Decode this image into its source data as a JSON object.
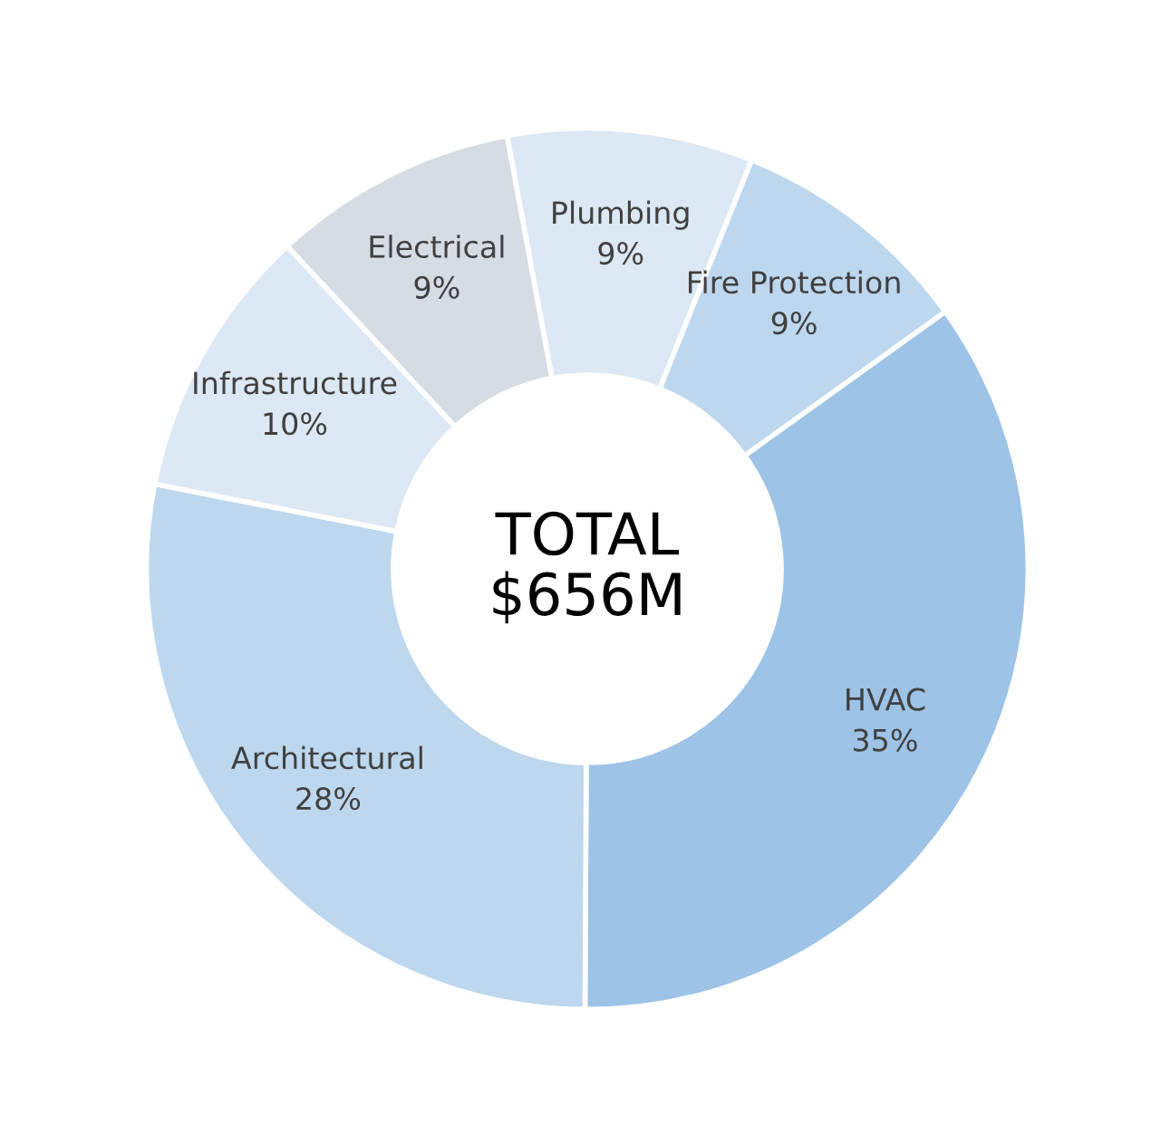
{
  "chart_data": {
    "type": "donut",
    "categories": [
      "Plumbing",
      "Fire Protection",
      "HVAC",
      "Architectural",
      "Infrastructure",
      "Electrical"
    ],
    "values": [
      9,
      9,
      35,
      28,
      10,
      9
    ],
    "value_labels": [
      "9%",
      "9%",
      "35%",
      "28%",
      "10%",
      "9%"
    ],
    "colors": [
      "#dde8f5",
      "#bdd7ee",
      "#9dc3e6",
      "#bdd7ee",
      "#dde8f5",
      "#d6dce4"
    ],
    "annotations": [
      "TOTAL\n$656M"
    ],
    "legend": false
  }
}
